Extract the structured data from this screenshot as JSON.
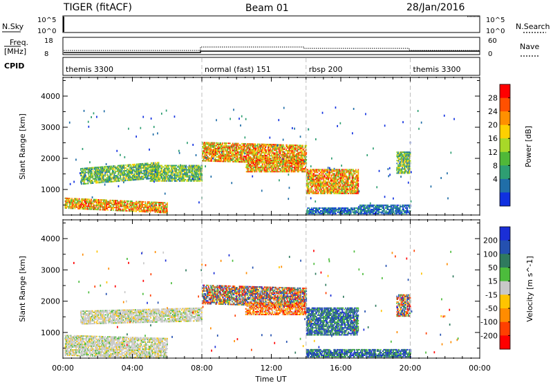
{
  "header": {
    "station": "TIGER (fitACF)",
    "beam": "Beam 01",
    "date": "28/Jan/2016"
  },
  "top_panels": {
    "nsky_label": "N.Sky",
    "nsky_ticks": [
      "10^5",
      "10^0"
    ],
    "nsearch_label": "N.Search",
    "nsearch_ticks": [
      "10^5",
      "10^0"
    ],
    "freq_label": "Freq.",
    "freq_unit": "[MHz]",
    "freq_ticks": [
      "18",
      "8"
    ],
    "nave_label": "Nave",
    "nave_ticks": [
      "60",
      "0"
    ],
    "cpid_label": "CPID"
  },
  "cpid_segments": [
    {
      "label": "themis 3300",
      "start_h": 0
    },
    {
      "label": "normal (fast) 151",
      "start_h": 8
    },
    {
      "label": "rbsp 200",
      "start_h": 14
    },
    {
      "label": "themis 3300",
      "start_h": 20
    }
  ],
  "x_axis": {
    "label": "Time UT",
    "range_h": [
      0,
      24
    ],
    "tick_labels": [
      "00:00",
      "04:00",
      "08:00",
      "12:00",
      "16:00",
      "20:00",
      "00:00"
    ]
  },
  "chart_data": [
    {
      "type": "heatmap",
      "name": "power",
      "ylabel": "Slant Range [km]",
      "ylim": [
        180,
        4600
      ],
      "y_ticks": [
        1000,
        2000,
        3000,
        4000
      ],
      "colorbar": {
        "label": "Power [dB]",
        "ticks": [
          "28",
          "24",
          "20",
          "16",
          "12",
          "8",
          "4"
        ],
        "colors": [
          "#ff0000",
          "#ff5000",
          "#ff9000",
          "#ffd000",
          "#a8d828",
          "#50b838",
          "#2e9e72",
          "#206ea8",
          "#1030e0"
        ]
      },
      "regions": [
        {
          "t0": 0.1,
          "t1": 6.0,
          "r0": 380,
          "r1": 700,
          "slope": -150,
          "level": "high"
        },
        {
          "t0": 1.0,
          "t1": 5.5,
          "r0": 1150,
          "r1": 1650,
          "slope": 200,
          "level": "mid"
        },
        {
          "t0": 5.0,
          "t1": 8.0,
          "r0": 1250,
          "r1": 1750,
          "slope": 0,
          "level": "mid"
        },
        {
          "t0": 8.0,
          "t1": 14.0,
          "r0": 1900,
          "r1": 2500,
          "slope": -100,
          "level": "high"
        },
        {
          "t0": 10.5,
          "t1": 14.0,
          "r0": 1550,
          "r1": 1950,
          "slope": 0,
          "level": "high"
        },
        {
          "t0": 14.0,
          "t1": 17.0,
          "r0": 850,
          "r1": 1650,
          "slope": 0,
          "level": "high"
        },
        {
          "t0": 14.0,
          "t1": 17.0,
          "r0": 200,
          "r1": 420,
          "slope": 0,
          "level": "low"
        },
        {
          "t0": 17.0,
          "t1": 20.0,
          "r0": 200,
          "r1": 500,
          "slope": 0,
          "level": "low"
        },
        {
          "t0": 19.2,
          "t1": 20.0,
          "r0": 1500,
          "r1": 2200,
          "slope": 0,
          "level": "mid"
        }
      ]
    },
    {
      "type": "heatmap",
      "name": "velocity",
      "ylabel": "Slant Range [km]",
      "ylim": [
        180,
        4600
      ],
      "y_ticks": [
        1000,
        2000,
        3000,
        4000
      ],
      "colorbar": {
        "label": "Velocity [m s^-1]",
        "ticks": [
          "200",
          "100",
          "50",
          "15",
          "-15",
          "-50",
          "-100",
          "-200"
        ],
        "colors": [
          "#1a2ed6",
          "#2450b0",
          "#2f7a5e",
          "#4cbc3c",
          "#c8c8c8",
          "#ffc400",
          "#ff8c00",
          "#ff4000",
          "#ff0000"
        ]
      },
      "regions": [
        {
          "t0": 0.1,
          "t1": 6.0,
          "r0": 250,
          "r1": 900,
          "slope": -100,
          "level": "zero"
        },
        {
          "t0": 1.0,
          "t1": 8.0,
          "r0": 1250,
          "r1": 1700,
          "slope": 100,
          "level": "zero"
        },
        {
          "t0": 8.0,
          "t1": 14.0,
          "r0": 1900,
          "r1": 2500,
          "slope": -100,
          "level": "mixed"
        },
        {
          "t0": 10.5,
          "t1": 14.0,
          "r0": 1550,
          "r1": 1950,
          "slope": 0,
          "level": "neg"
        },
        {
          "t0": 14.0,
          "t1": 17.0,
          "r0": 900,
          "r1": 1800,
          "slope": 0,
          "level": "pos"
        },
        {
          "t0": 14.0,
          "t1": 20.0,
          "r0": 200,
          "r1": 450,
          "slope": 0,
          "level": "pos"
        },
        {
          "t0": 19.2,
          "t1": 20.0,
          "r0": 1500,
          "r1": 2200,
          "slope": 0,
          "level": "mixed"
        }
      ]
    }
  ]
}
